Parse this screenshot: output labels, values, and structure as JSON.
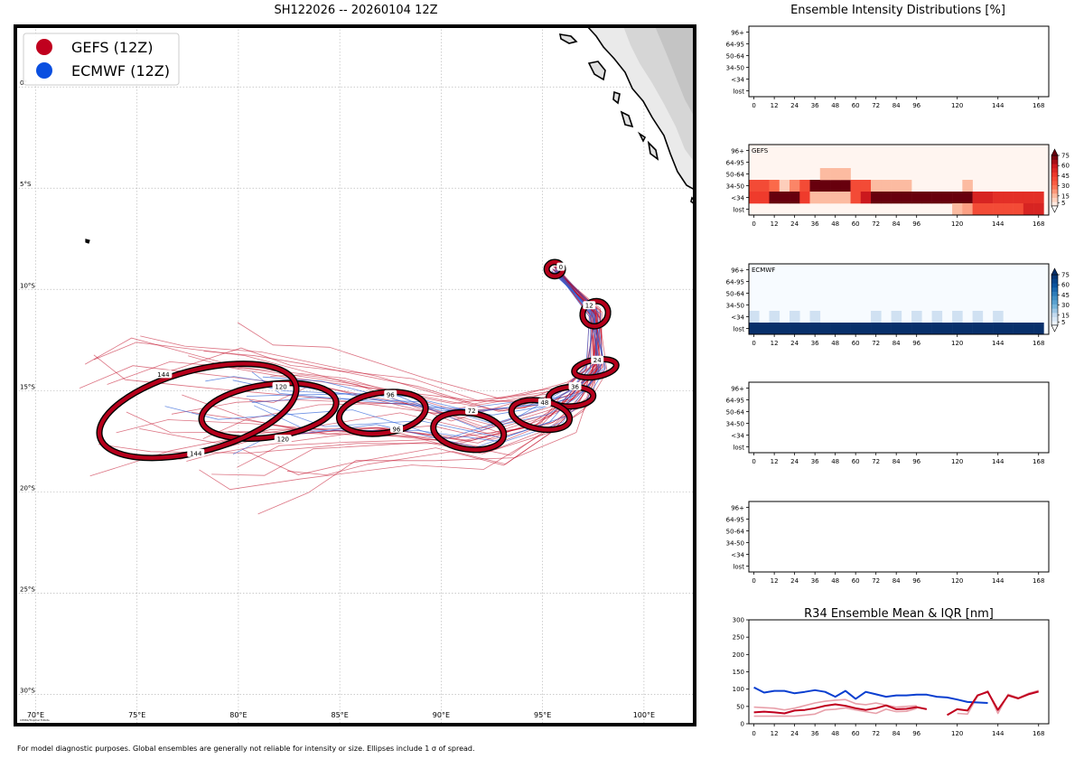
{
  "map": {
    "title": "SH122026 -- 20260104 12Z",
    "lon_range": [
      69,
      102.5
    ],
    "lat_range": [
      -31.5,
      3
    ],
    "lon_ticks": [
      70,
      75,
      80,
      85,
      90,
      95,
      100
    ],
    "lon_tick_labels": [
      "70°E",
      "75°E",
      "80°E",
      "85°E",
      "90°E",
      "95°E",
      "100°E"
    ],
    "lat_ticks": [
      0,
      -5,
      -10,
      -15,
      -20,
      -25,
      -30
    ],
    "lat_tick_labels": [
      "0°",
      "5°S",
      "10°S",
      "15°S",
      "20°S",
      "25°S",
      "30°S"
    ],
    "watermark": "CIMSS/Tropical Tidbits",
    "legend": [
      {
        "label": "GEFS (12Z)",
        "color": "#c0001e"
      },
      {
        "label": "ECMWF (12Z)",
        "color": "#0a4fe0"
      }
    ],
    "colors": {
      "gefs": "#c0001e",
      "ecmwf": "#2f62d8",
      "ellipse_fill": "#b5001b",
      "land": "#ececec"
    },
    "ellipses": [
      {
        "hour": 0,
        "lon": 95.6,
        "lat": -9.0,
        "rx": 0.4,
        "ry": 0.35,
        "rot": 0,
        "labels": [
          {
            "text": "0",
            "lon": 95.9,
            "lat": -8.9
          }
        ]
      },
      {
        "hour": 12,
        "lon": 97.6,
        "lat": -11.2,
        "rx": 0.65,
        "ry": 0.6,
        "rot": -40,
        "labels": [
          {
            "text": "12",
            "lon": 97.3,
            "lat": -10.8
          }
        ]
      },
      {
        "hour": 24,
        "lon": 97.6,
        "lat": -13.9,
        "rx": 1.05,
        "ry": 0.42,
        "rot": -10,
        "labels": [
          {
            "text": "24",
            "lon": 97.7,
            "lat": -13.5
          }
        ]
      },
      {
        "hour": 36,
        "lon": 96.4,
        "lat": -15.3,
        "rx": 1.1,
        "ry": 0.48,
        "rot": -3,
        "labels": [
          {
            "text": "36",
            "lon": 96.6,
            "lat": -14.8
          }
        ]
      },
      {
        "hour": 48,
        "lon": 94.9,
        "lat": -16.2,
        "rx": 1.45,
        "ry": 0.7,
        "rot": 10,
        "labels": [
          {
            "text": "48",
            "lon": 95.1,
            "lat": -15.6
          }
        ]
      },
      {
        "hour": 72,
        "lon": 91.35,
        "lat": -17.0,
        "rx": 1.75,
        "ry": 0.9,
        "rot": 8,
        "labels": [
          {
            "text": "72",
            "lon": 91.5,
            "lat": -16.0
          }
        ]
      },
      {
        "hour": 96,
        "lon": 87.1,
        "lat": -16.1,
        "rx": 2.15,
        "ry": 1.0,
        "rot": -8,
        "labels": [
          {
            "text": "96",
            "lon": 87.5,
            "lat": -15.2
          },
          {
            "text": "96",
            "lon": 87.8,
            "lat": -16.9
          }
        ]
      },
      {
        "hour": 120,
        "lon": 81.5,
        "lat": -16.0,
        "rx": 3.35,
        "ry": 1.3,
        "rot": -8,
        "labels": [
          {
            "text": "120",
            "lon": 82.1,
            "lat": -14.8
          },
          {
            "text": "120",
            "lon": 82.2,
            "lat": -17.4
          }
        ]
      },
      {
        "hour": 144,
        "lon": 78.0,
        "lat": -16.0,
        "rx": 5.0,
        "ry": 2.0,
        "rot": -15,
        "labels": [
          {
            "text": "144",
            "lon": 76.3,
            "lat": -14.2
          },
          {
            "text": "144",
            "lon": 77.9,
            "lat": -18.1
          }
        ]
      }
    ]
  },
  "intensity": {
    "title": "Ensemble Intensity Distributions [%]",
    "y_categories": [
      "96+",
      "64-95",
      "50-64",
      "34-50",
      "<34",
      "lost"
    ],
    "x_ticks": [
      0,
      12,
      24,
      36,
      48,
      60,
      72,
      84,
      96,
      120,
      144,
      168
    ],
    "x_range": [
      -3,
      174
    ],
    "colorbar_ticks": [
      5,
      15,
      30,
      45,
      60,
      75
    ],
    "panels": [
      {
        "label": "",
        "colormap": "none",
        "cells": []
      },
      {
        "label": "GEFS",
        "colormap": "Reds",
        "cells": [
          {
            "t": 0,
            "cat": "34-50",
            "v": 40
          },
          {
            "t": 6,
            "cat": "34-50",
            "v": 40
          },
          {
            "t": 12,
            "cat": "34-50",
            "v": 30
          },
          {
            "t": 18,
            "cat": "34-50",
            "v": 10
          },
          {
            "t": 24,
            "cat": "34-50",
            "v": 25
          },
          {
            "t": 30,
            "cat": "34-50",
            "v": 40
          },
          {
            "t": 36,
            "cat": "34-50",
            "v": 75
          },
          {
            "t": 42,
            "cat": "34-50",
            "v": 75
          },
          {
            "t": 48,
            "cat": "34-50",
            "v": 75
          },
          {
            "t": 54,
            "cat": "34-50",
            "v": 75
          },
          {
            "t": 60,
            "cat": "34-50",
            "v": 40
          },
          {
            "t": 66,
            "cat": "34-50",
            "v": 40
          },
          {
            "t": 72,
            "cat": "34-50",
            "v": 15
          },
          {
            "t": 78,
            "cat": "34-50",
            "v": 15
          },
          {
            "t": 84,
            "cat": "34-50",
            "v": 15
          },
          {
            "t": 90,
            "cat": "34-50",
            "v": 15
          },
          {
            "t": 126,
            "cat": "34-50",
            "v": 15
          },
          {
            "t": 42,
            "cat": "50-64",
            "v": 15
          },
          {
            "t": 48,
            "cat": "50-64",
            "v": 15
          },
          {
            "t": 54,
            "cat": "50-64",
            "v": 15
          },
          {
            "t": 0,
            "cat": "<34",
            "v": 45
          },
          {
            "t": 6,
            "cat": "<34",
            "v": 45
          },
          {
            "t": 12,
            "cat": "<34",
            "v": 75
          },
          {
            "t": 18,
            "cat": "<34",
            "v": 75
          },
          {
            "t": 24,
            "cat": "<34",
            "v": 75
          },
          {
            "t": 30,
            "cat": "<34",
            "v": 45
          },
          {
            "t": 36,
            "cat": "<34",
            "v": 15
          },
          {
            "t": 42,
            "cat": "<34",
            "v": 15
          },
          {
            "t": 48,
            "cat": "<34",
            "v": 15
          },
          {
            "t": 54,
            "cat": "<34",
            "v": 15
          },
          {
            "t": 60,
            "cat": "<34",
            "v": 40
          },
          {
            "t": 66,
            "cat": "<34",
            "v": 60
          },
          {
            "t": 72,
            "cat": "<34",
            "v": 75
          },
          {
            "t": 78,
            "cat": "<34",
            "v": 75
          },
          {
            "t": 84,
            "cat": "<34",
            "v": 75
          },
          {
            "t": 90,
            "cat": "<34",
            "v": 75
          },
          {
            "t": 96,
            "cat": "<34",
            "v": 75
          },
          {
            "t": 102,
            "cat": "<34",
            "v": 75
          },
          {
            "t": 108,
            "cat": "<34",
            "v": 75
          },
          {
            "t": 114,
            "cat": "<34",
            "v": 75
          },
          {
            "t": 120,
            "cat": "<34",
            "v": 75
          },
          {
            "t": 126,
            "cat": "<34",
            "v": 75
          },
          {
            "t": 132,
            "cat": "<34",
            "v": 55
          },
          {
            "t": 138,
            "cat": "<34",
            "v": 55
          },
          {
            "t": 144,
            "cat": "<34",
            "v": 50
          },
          {
            "t": 150,
            "cat": "<34",
            "v": 50
          },
          {
            "t": 156,
            "cat": "<34",
            "v": 50
          },
          {
            "t": 162,
            "cat": "<34",
            "v": 50
          },
          {
            "t": 168,
            "cat": "<34",
            "v": 50
          },
          {
            "t": 120,
            "cat": "lost",
            "v": 15
          },
          {
            "t": 126,
            "cat": "lost",
            "v": 20
          },
          {
            "t": 132,
            "cat": "lost",
            "v": 40
          },
          {
            "t": 138,
            "cat": "lost",
            "v": 40
          },
          {
            "t": 144,
            "cat": "lost",
            "v": 40
          },
          {
            "t": 150,
            "cat": "lost",
            "v": 40
          },
          {
            "t": 156,
            "cat": "lost",
            "v": 40
          },
          {
            "t": 162,
            "cat": "lost",
            "v": 55
          },
          {
            "t": 168,
            "cat": "lost",
            "v": 55
          }
        ]
      },
      {
        "label": "ECMWF",
        "colormap": "Blues",
        "cells": [
          {
            "t": 0,
            "cat": "<34",
            "v": 12
          },
          {
            "t": 12,
            "cat": "<34",
            "v": 12
          },
          {
            "t": 24,
            "cat": "<34",
            "v": 12
          },
          {
            "t": 36,
            "cat": "<34",
            "v": 12
          },
          {
            "t": 72,
            "cat": "<34",
            "v": 12
          },
          {
            "t": 84,
            "cat": "<34",
            "v": 12
          },
          {
            "t": 96,
            "cat": "<34",
            "v": 12
          },
          {
            "t": 108,
            "cat": "<34",
            "v": 12
          },
          {
            "t": 120,
            "cat": "<34",
            "v": 12
          },
          {
            "t": 132,
            "cat": "<34",
            "v": 12
          },
          {
            "t": 144,
            "cat": "<34",
            "v": 12
          },
          {
            "t": 0,
            "cat": "lost",
            "v": 85
          },
          {
            "t": 6,
            "cat": "lost",
            "v": 85
          },
          {
            "t": 12,
            "cat": "lost",
            "v": 85
          },
          {
            "t": 18,
            "cat": "lost",
            "v": 85
          },
          {
            "t": 24,
            "cat": "lost",
            "v": 85
          },
          {
            "t": 30,
            "cat": "lost",
            "v": 85
          },
          {
            "t": 36,
            "cat": "lost",
            "v": 85
          },
          {
            "t": 42,
            "cat": "lost",
            "v": 85
          },
          {
            "t": 48,
            "cat": "lost",
            "v": 85
          },
          {
            "t": 54,
            "cat": "lost",
            "v": 85
          },
          {
            "t": 60,
            "cat": "lost",
            "v": 85
          },
          {
            "t": 66,
            "cat": "lost",
            "v": 85
          },
          {
            "t": 72,
            "cat": "lost",
            "v": 85
          },
          {
            "t": 78,
            "cat": "lost",
            "v": 85
          },
          {
            "t": 84,
            "cat": "lost",
            "v": 85
          },
          {
            "t": 90,
            "cat": "lost",
            "v": 85
          },
          {
            "t": 96,
            "cat": "lost",
            "v": 85
          },
          {
            "t": 102,
            "cat": "lost",
            "v": 85
          },
          {
            "t": 108,
            "cat": "lost",
            "v": 85
          },
          {
            "t": 114,
            "cat": "lost",
            "v": 85
          },
          {
            "t": 120,
            "cat": "lost",
            "v": 85
          },
          {
            "t": 126,
            "cat": "lost",
            "v": 85
          },
          {
            "t": 132,
            "cat": "lost",
            "v": 85
          },
          {
            "t": 138,
            "cat": "lost",
            "v": 85
          },
          {
            "t": 144,
            "cat": "lost",
            "v": 85
          },
          {
            "t": 150,
            "cat": "lost",
            "v": 85
          },
          {
            "t": 156,
            "cat": "lost",
            "v": 85
          },
          {
            "t": 162,
            "cat": "lost",
            "v": 85
          },
          {
            "t": 168,
            "cat": "lost",
            "v": 85
          }
        ]
      },
      {
        "label": "",
        "colormap": "none",
        "cells": []
      },
      {
        "label": "",
        "colormap": "none",
        "cells": []
      }
    ]
  },
  "r34": {
    "title": "R34 Ensemble Mean & IQR [nm]",
    "y_ticks": [
      0,
      50,
      100,
      150,
      200,
      250,
      300
    ],
    "ylim": [
      0,
      300
    ],
    "x_ticks": [
      0,
      12,
      24,
      36,
      48,
      60,
      72,
      84,
      96,
      120,
      144,
      168
    ],
    "series": [
      {
        "name": "ECMWF mean",
        "color": "#0a3fd0",
        "points": [
          [
            0,
            105
          ],
          [
            6,
            90
          ],
          [
            12,
            95
          ],
          [
            18,
            95
          ],
          [
            24,
            88
          ],
          [
            30,
            92
          ],
          [
            36,
            97
          ],
          [
            42,
            92
          ],
          [
            48,
            78
          ],
          [
            54,
            95
          ],
          [
            60,
            72
          ],
          [
            66,
            92
          ],
          [
            72,
            85
          ],
          [
            78,
            78
          ],
          [
            84,
            82
          ],
          [
            90,
            82
          ],
          [
            96,
            84
          ],
          [
            102,
            84
          ],
          [
            108,
            78
          ],
          [
            114,
            76
          ],
          [
            120,
            70
          ],
          [
            126,
            63
          ],
          [
            130,
            62
          ],
          [
            138,
            60
          ]
        ]
      },
      {
        "name": "GEFS mean",
        "color": "#c0001e",
        "points": [
          [
            0,
            33
          ],
          [
            6,
            35
          ],
          [
            12,
            33
          ],
          [
            18,
            30
          ],
          [
            24,
            38
          ],
          [
            30,
            40
          ],
          [
            36,
            45
          ],
          [
            42,
            52
          ],
          [
            48,
            56
          ],
          [
            54,
            52
          ],
          [
            60,
            45
          ],
          [
            66,
            40
          ],
          [
            72,
            45
          ],
          [
            78,
            53
          ],
          [
            84,
            42
          ],
          [
            90,
            43
          ],
          [
            96,
            48
          ],
          [
            102,
            42
          ],
          [
            null,
            null
          ],
          [
            114,
            25
          ],
          [
            120,
            42
          ],
          [
            126,
            38
          ],
          [
            132,
            82
          ],
          [
            138,
            92
          ],
          [
            144,
            40
          ],
          [
            150,
            82
          ],
          [
            156,
            73
          ],
          [
            162,
            85
          ],
          [
            168,
            93
          ]
        ]
      },
      {
        "name": "GEFS IQR low",
        "color": "#e8a0aa",
        "points": [
          [
            0,
            22
          ],
          [
            12,
            22
          ],
          [
            24,
            22
          ],
          [
            36,
            28
          ],
          [
            42,
            40
          ],
          [
            48,
            42
          ],
          [
            54,
            46
          ],
          [
            60,
            40
          ],
          [
            66,
            35
          ],
          [
            72,
            30
          ],
          [
            78,
            42
          ],
          [
            84,
            35
          ],
          [
            90,
            36
          ],
          [
            96,
            44
          ]
        ]
      },
      {
        "name": "GEFS IQR high",
        "color": "#e8a0aa",
        "points": [
          [
            0,
            48
          ],
          [
            12,
            45
          ],
          [
            18,
            40
          ],
          [
            24,
            45
          ],
          [
            36,
            60
          ],
          [
            42,
            65
          ],
          [
            48,
            68
          ],
          [
            54,
            70
          ],
          [
            60,
            58
          ],
          [
            66,
            55
          ],
          [
            72,
            60
          ],
          [
            84,
            48
          ],
          [
            96,
            52
          ]
        ]
      },
      {
        "name": "GEFS IQR late",
        "color": "#e8a0aa",
        "points": [
          [
            120,
            30
          ],
          [
            126,
            28
          ],
          [
            132,
            80
          ],
          [
            138,
            95
          ],
          [
            144,
            30
          ],
          [
            150,
            85
          ],
          [
            156,
            75
          ],
          [
            162,
            88
          ],
          [
            168,
            96
          ]
        ]
      }
    ]
  },
  "footer": "For model diagnostic purposes. Global ensembles are generally not reliable for intensity or size. Ellipses include 1 σ of spread."
}
